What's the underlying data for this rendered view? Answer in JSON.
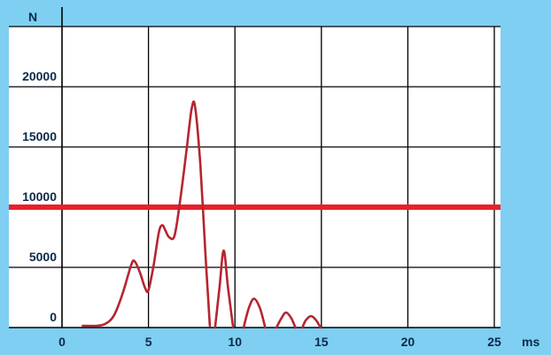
{
  "chart_data": {
    "type": "line",
    "title": "",
    "xlabel": "ms",
    "ylabel": "N",
    "xlim": [
      0,
      25
    ],
    "ylim": [
      0,
      25000
    ],
    "xticks": [
      0,
      5,
      10,
      15,
      20,
      25
    ],
    "yticks": [
      0,
      5000,
      10000,
      15000,
      20000
    ],
    "x_tick_labels": [
      "0",
      "5",
      "10",
      "15",
      "20",
      "25"
    ],
    "y_tick_labels": [
      "0",
      "5000",
      "10000",
      "15000",
      "20000"
    ],
    "grid": true,
    "threshold": {
      "y": 10000,
      "color": "#e8202a"
    },
    "series": [
      {
        "color": "#b5252f",
        "segments": [
          [
            [
              1.2,
              150
            ],
            [
              2.0,
              150
            ],
            [
              2.5,
              300
            ],
            [
              3.0,
              1000
            ],
            [
              3.5,
              2800
            ],
            [
              4.0,
              5200
            ],
            [
              4.2,
              5500
            ],
            [
              4.5,
              4600
            ],
            [
              4.8,
              3300
            ],
            [
              5.0,
              3100
            ],
            [
              5.3,
              5200
            ],
            [
              5.6,
              7900
            ],
            [
              5.8,
              8500
            ],
            [
              6.0,
              8000
            ],
            [
              6.2,
              7500
            ],
            [
              6.5,
              7600
            ],
            [
              6.8,
              10200
            ],
            [
              7.2,
              14700
            ],
            [
              7.5,
              18200
            ],
            [
              7.7,
              18300
            ],
            [
              8.0,
              13500
            ],
            [
              8.3,
              6000
            ],
            [
              8.55,
              150
            ]
          ],
          [
            [
              8.85,
              0
            ],
            [
              9.1,
              3200
            ],
            [
              9.35,
              6400
            ],
            [
              9.6,
              3300
            ],
            [
              9.9,
              0
            ]
          ],
          [
            [
              10.5,
              0
            ],
            [
              10.8,
              1600
            ],
            [
              11.1,
              2400
            ],
            [
              11.45,
              1600
            ],
            [
              11.75,
              0
            ]
          ],
          [
            [
              12.4,
              0
            ],
            [
              12.7,
              800
            ],
            [
              12.95,
              1250
            ],
            [
              13.25,
              800
            ],
            [
              13.5,
              0
            ]
          ],
          [
            [
              13.9,
              0
            ],
            [
              14.1,
              600
            ],
            [
              14.4,
              950
            ],
            [
              14.7,
              600
            ],
            [
              14.95,
              0
            ]
          ]
        ]
      }
    ]
  }
}
